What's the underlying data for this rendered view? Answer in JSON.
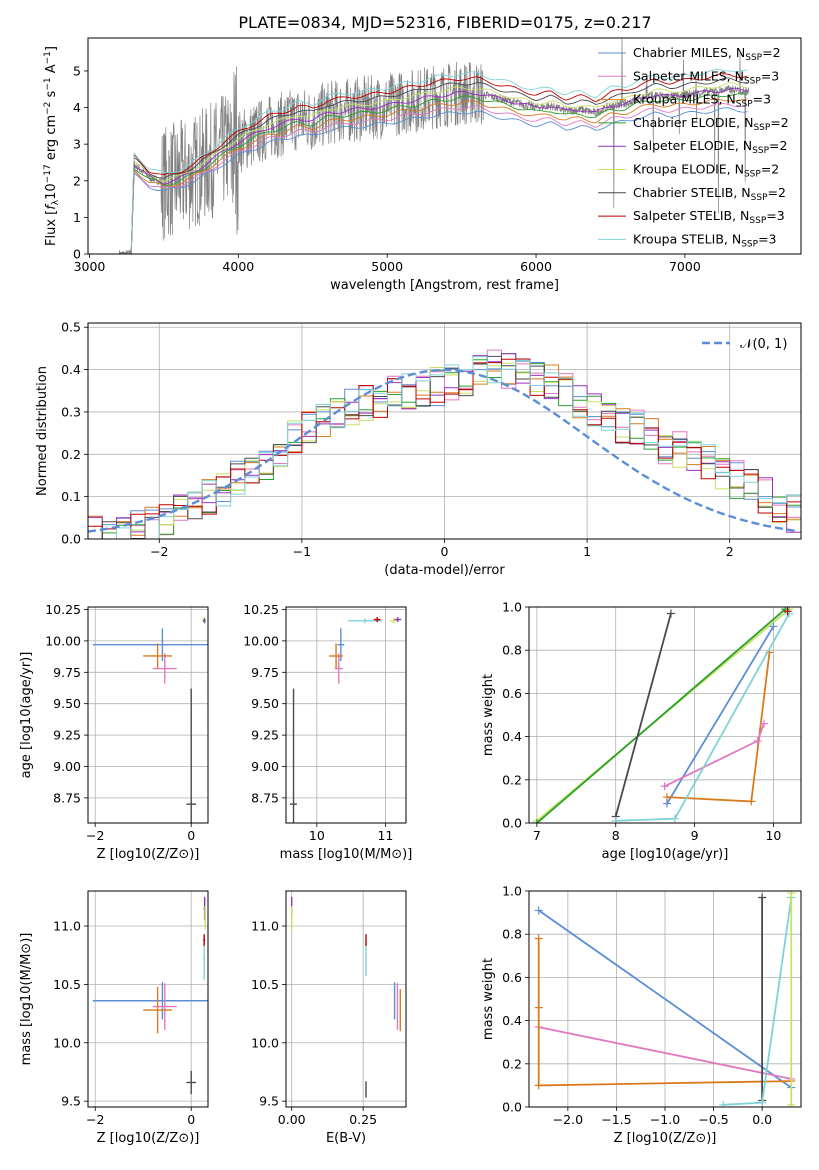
{
  "title": "PLATE=0834, MJD=52316, FIBERID=0175, z=0.217",
  "colors": {
    "chabrier_miles": "#5b8ed6",
    "salpeter_miles": "#e377c2",
    "kroupa_miles": "#d97a1f",
    "chabrier_elodie": "#2ca02c",
    "salpeter_elodie": "#9b30c0",
    "kroupa_elodie": "#c7e065",
    "chabrier_stelib": "#4a4a4a",
    "salpeter_stelib": "#c00000",
    "kroupa_stelib": "#7fd3d8",
    "spectrum": "#808080",
    "normal_curve": "#5b8ed6"
  },
  "chart_data": [
    {
      "id": "spectrum",
      "type": "line",
      "title": "PLATE=0834, MJD=52316, FIBERID=0175, z=0.217",
      "xlabel": "wavelength [Angstrom, rest frame]",
      "ylabel": "Flux [f_λ 10^-17 erg cm^-2 s^-1 A^-1]",
      "xlim": [
        2990,
        7780
      ],
      "ylim": [
        0,
        5.9
      ],
      "xticks": [
        3000,
        4000,
        5000,
        6000,
        7000
      ],
      "yticks": [
        0,
        1,
        2,
        3,
        4,
        5
      ],
      "legend": "top-right",
      "grid": false,
      "series": [
        {
          "key": "chabrier_miles",
          "label_main": "Chabrier MILES, N",
          "label_sub": "SSP",
          "label_end": "=2"
        },
        {
          "key": "salpeter_miles",
          "label_main": "Salpeter MILES, N",
          "label_sub": "SSP",
          "label_end": "=3"
        },
        {
          "key": "kroupa_miles",
          "label_main": "Kroupa MILES, N",
          "label_sub": "SSP",
          "label_end": "=3"
        },
        {
          "key": "chabrier_elodie",
          "label_main": "Chabrier ELODIE, N",
          "label_sub": "SSP",
          "label_end": "=2"
        },
        {
          "key": "salpeter_elodie",
          "label_main": "Salpeter ELODIE, N",
          "label_sub": "SSP",
          "label_end": "=2"
        },
        {
          "key": "kroupa_elodie",
          "label_main": "Kroupa ELODIE, N",
          "label_sub": "SSP",
          "label_end": "=2"
        },
        {
          "key": "chabrier_stelib",
          "label_main": "Chabrier STELIB, N",
          "label_sub": "SSP",
          "label_end": "=2"
        },
        {
          "key": "salpeter_stelib",
          "label_main": "Salpeter STELIB, N",
          "label_sub": "SSP",
          "label_end": "=3"
        },
        {
          "key": "kroupa_stelib",
          "label_main": "Kroupa STELIB, N",
          "label_sub": "SSP",
          "label_end": "=3"
        }
      ],
      "model_envelope": {
        "x": [
          3280,
          3300,
          3400,
          3500,
          3600,
          3700,
          3800,
          3900,
          4000,
          4100,
          4200,
          4300,
          4400,
          4500,
          4600,
          4700,
          4800,
          4900,
          5000,
          5100,
          5200,
          5300,
          5400,
          5500,
          5600,
          5700,
          5800,
          5900,
          6000,
          6100,
          6200,
          6300,
          6400,
          6500,
          6600,
          6700,
          6800,
          6900,
          7000,
          7100,
          7200,
          7300,
          7400
        ],
        "y": [
          0,
          2.45,
          2.1,
          1.95,
          2.05,
          2.25,
          2.5,
          2.8,
          3.05,
          3.25,
          3.45,
          3.55,
          3.7,
          3.65,
          3.85,
          3.9,
          3.95,
          4.0,
          4.05,
          4.15,
          4.2,
          4.3,
          4.35,
          4.4,
          4.4,
          4.3,
          4.2,
          4.1,
          4.0,
          4.05,
          3.9,
          3.95,
          3.85,
          4.05,
          4.1,
          4.25,
          4.35,
          4.3,
          4.35,
          4.4,
          4.45,
          4.5,
          4.45
        ]
      }
    },
    {
      "id": "residuals",
      "type": "line",
      "xlabel": "(data-model)/error",
      "ylabel": "Normed distribution",
      "xlim": [
        -2.5,
        2.5
      ],
      "ylim": [
        0,
        0.51
      ],
      "xticks": [
        -2,
        -1,
        0,
        1,
        2
      ],
      "yticks": [
        0.0,
        0.1,
        0.2,
        0.3,
        0.4,
        0.5
      ],
      "grid": true,
      "legend": "top-right",
      "normal_label": "𝒩(0, 1)",
      "hist_bin_width": 0.1,
      "hist_centers": [
        -2.45,
        -2.35,
        -2.25,
        -2.15,
        -2.05,
        -1.95,
        -1.85,
        -1.75,
        -1.65,
        -1.55,
        -1.45,
        -1.35,
        -1.25,
        -1.15,
        -1.05,
        -0.95,
        -0.85,
        -0.75,
        -0.65,
        -0.55,
        -0.45,
        -0.35,
        -0.25,
        -0.15,
        -0.05,
        0.05,
        0.15,
        0.25,
        0.35,
        0.45,
        0.55,
        0.65,
        0.75,
        0.85,
        0.95,
        1.05,
        1.15,
        1.25,
        1.35,
        1.45,
        1.55,
        1.65,
        1.75,
        1.85,
        1.95,
        2.05,
        2.15,
        2.25,
        2.35,
        2.45
      ],
      "hist_base": [
        0.01,
        0.015,
        0.02,
        0.025,
        0.03,
        0.04,
        0.06,
        0.08,
        0.1,
        0.12,
        0.14,
        0.16,
        0.18,
        0.21,
        0.24,
        0.26,
        0.28,
        0.3,
        0.31,
        0.32,
        0.33,
        0.34,
        0.35,
        0.35,
        0.36,
        0.37,
        0.38,
        0.4,
        0.41,
        0.4,
        0.39,
        0.38,
        0.37,
        0.35,
        0.33,
        0.31,
        0.29,
        0.27,
        0.26,
        0.24,
        0.22,
        0.21,
        0.2,
        0.18,
        0.16,
        0.14,
        0.12,
        0.1,
        0.08,
        0.06
      ]
    },
    {
      "id": "age-vs-z",
      "type": "scatter",
      "xlabel": "Z [log10(Z/Z⊙)]",
      "ylabel": "age  [log10(age/yr)]",
      "xlim": [
        -2.15,
        0.35
      ],
      "ylim": [
        8.55,
        10.27
      ],
      "xticks": [
        -2,
        0
      ],
      "yticks": [
        8.75,
        9.0,
        9.25,
        9.5,
        9.75,
        10.0,
        10.25
      ],
      "grid": true,
      "points": [
        {
          "key": "chabrier_miles",
          "x": -0.6,
          "xerr": 1.45,
          "y": 9.97,
          "yerr": 0.13
        },
        {
          "key": "salpeter_miles",
          "x": -0.55,
          "xerr": 0.25,
          "y": 9.78,
          "yerr": 0.12
        },
        {
          "key": "kroupa_miles",
          "x": -0.7,
          "xerr": 0.3,
          "y": 9.88,
          "yerr": 0.1
        },
        {
          "key": "chabrier_stelib",
          "x": 0.0,
          "xerr": 0.1,
          "y": 8.7,
          "yerr": 0.92
        },
        {
          "key": "kroupa_elodie",
          "x": 0.27,
          "xerr": 0.03,
          "y": 10.17,
          "yerr": 0.02
        },
        {
          "key": "salpeter_elodie",
          "x": 0.28,
          "xerr": 0.02,
          "y": 10.16,
          "yerr": 0.02
        },
        {
          "key": "chabrier_elodie",
          "x": 0.26,
          "xerr": 0.02,
          "y": 10.16,
          "yerr": 0.01
        }
      ]
    },
    {
      "id": "age-vs-mass",
      "type": "scatter",
      "xlabel": "mass [log10(M/M⊙)]",
      "ylabel": "",
      "xlim": [
        9.55,
        11.3
      ],
      "ylim": [
        8.55,
        10.27
      ],
      "xticks": [
        10,
        11
      ],
      "yticks": [
        8.75,
        9.0,
        9.25,
        9.5,
        9.75,
        10.0,
        10.25
      ],
      "grid": true,
      "points": [
        {
          "key": "chabrier_miles",
          "x": 10.35,
          "xerr": 0.05,
          "y": 9.97,
          "yerr": 0.13
        },
        {
          "key": "salpeter_miles",
          "x": 10.32,
          "xerr": 0.06,
          "y": 9.78,
          "yerr": 0.12
        },
        {
          "key": "kroupa_miles",
          "x": 10.28,
          "xerr": 0.1,
          "y": 9.88,
          "yerr": 0.1
        },
        {
          "key": "chabrier_stelib",
          "x": 9.66,
          "xerr": 0.05,
          "y": 8.7,
          "yerr": 0.92
        },
        {
          "key": "kroupa_stelib",
          "x": 10.7,
          "xerr": 0.25,
          "y": 10.16,
          "yerr": 0.02
        },
        {
          "key": "salpeter_stelib",
          "x": 10.88,
          "xerr": 0.05,
          "y": 10.17,
          "yerr": 0.02
        },
        {
          "key": "salpeter_elodie",
          "x": 11.18,
          "xerr": 0.05,
          "y": 10.17,
          "yerr": 0.02
        },
        {
          "key": "kroupa_elodie",
          "x": 11.12,
          "xerr": 0.05,
          "y": 10.16,
          "yerr": 0.02
        }
      ]
    },
    {
      "id": "weight-vs-age",
      "type": "line",
      "xlabel": "age  [log10(age/yr)]",
      "ylabel": "mass weight",
      "xlim": [
        6.9,
        10.35
      ],
      "ylim": [
        0,
        1.0
      ],
      "xticks": [
        7,
        8,
        9,
        10
      ],
      "yticks": [
        0.0,
        0.2,
        0.4,
        0.6,
        0.8,
        1.0
      ],
      "grid": true,
      "series": [
        {
          "key": "kroupa_elodie",
          "x": [
            7.0,
            10.2
          ],
          "y": [
            0.01,
            0.99
          ]
        },
        {
          "key": "chabrier_elodie",
          "x": [
            7.0,
            10.15
          ],
          "y": [
            0.0,
            0.99
          ]
        },
        {
          "key": "chabrier_stelib",
          "x": [
            8.0,
            8.7
          ],
          "y": [
            0.03,
            0.97
          ]
        },
        {
          "key": "chabrier_miles",
          "x": [
            8.65,
            10.0
          ],
          "y": [
            0.09,
            0.91
          ]
        },
        {
          "key": "kroupa_miles",
          "x": [
            8.65,
            9.72,
            9.95
          ],
          "y": [
            0.12,
            0.1,
            0.79
          ]
        },
        {
          "key": "salpeter_miles",
          "x": [
            8.62,
            9.8,
            9.88
          ],
          "y": [
            0.17,
            0.38,
            0.46
          ]
        },
        {
          "key": "kroupa_stelib",
          "x": [
            8.0,
            8.75,
            10.2
          ],
          "y": [
            0.01,
            0.02,
            0.97
          ]
        },
        {
          "key": "salpeter_stelib",
          "x": [
            10.18
          ],
          "y": [
            0.98
          ]
        }
      ]
    },
    {
      "id": "mass-vs-z",
      "type": "scatter",
      "xlabel": "Z [log10(Z/Z⊙)]",
      "ylabel": "mass [log10(M/M⊙)]",
      "xlim": [
        -2.15,
        0.35
      ],
      "ylim": [
        9.45,
        11.3
      ],
      "xticks": [
        -2,
        0
      ],
      "yticks": [
        9.5,
        10.0,
        10.5,
        11.0
      ],
      "grid": true,
      "points": [
        {
          "key": "chabrier_miles",
          "x": -0.6,
          "xerr": 1.45,
          "y": 10.36,
          "yerr": 0.16
        },
        {
          "key": "salpeter_miles",
          "x": -0.55,
          "xerr": 0.25,
          "y": 10.31,
          "yerr": 0.2
        },
        {
          "key": "kroupa_miles",
          "x": -0.7,
          "xerr": 0.3,
          "y": 10.28,
          "yerr": 0.2
        },
        {
          "key": "chabrier_stelib",
          "x": 0.0,
          "xerr": 0.1,
          "y": 9.66,
          "yerr": 0.1
        },
        {
          "key": "kroupa_stelib",
          "x": 0.27,
          "xerr": 0.02,
          "y": 10.72,
          "yerr": 0.18
        },
        {
          "key": "salpeter_stelib",
          "x": 0.27,
          "xerr": 0.02,
          "y": 10.88,
          "yerr": 0.05
        },
        {
          "key": "salpeter_elodie",
          "x": 0.28,
          "xerr": 0.02,
          "y": 11.15,
          "yerr": 0.1
        },
        {
          "key": "kroupa_elodie",
          "x": 0.29,
          "xerr": 0.02,
          "y": 11.07,
          "yerr": 0.1
        }
      ]
    },
    {
      "id": "mass-vs-ebv",
      "type": "scatter",
      "xlabel": "E(B-V)",
      "ylabel": "",
      "xlim": [
        -0.02,
        0.4
      ],
      "ylim": [
        9.45,
        11.3
      ],
      "xticks": [
        0.0,
        0.25
      ],
      "yticks": [
        9.5,
        10.0,
        10.5,
        11.0
      ],
      "grid": true,
      "points": [
        {
          "key": "chabrier_miles",
          "x": 0.36,
          "xerr": 0,
          "y": 10.36,
          "yerr": 0.16
        },
        {
          "key": "salpeter_miles",
          "x": 0.37,
          "xerr": 0,
          "y": 10.31,
          "yerr": 0.2
        },
        {
          "key": "kroupa_miles",
          "x": 0.38,
          "xerr": 0,
          "y": 10.28,
          "yerr": 0.18
        },
        {
          "key": "chabrier_stelib",
          "x": 0.26,
          "xerr": 0,
          "y": 9.6,
          "yerr": 0.07
        },
        {
          "key": "kroupa_stelib",
          "x": 0.26,
          "xerr": 0,
          "y": 10.72,
          "yerr": 0.15
        },
        {
          "key": "salpeter_stelib",
          "x": 0.26,
          "xerr": 0,
          "y": 10.88,
          "yerr": 0.05
        },
        {
          "key": "salpeter_elodie",
          "x": 0.0,
          "xerr": 0,
          "y": 11.17,
          "yerr": 0.08
        },
        {
          "key": "kroupa_elodie",
          "x": 0.0,
          "xerr": 0,
          "y": 11.07,
          "yerr": 0.1
        }
      ]
    },
    {
      "id": "weight-vs-z",
      "type": "line",
      "xlabel": "Z [log10(Z/Z⊙)]",
      "ylabel": "mass weight",
      "xlim": [
        -2.4,
        0.4
      ],
      "ylim": [
        0,
        1.0
      ],
      "xticks": [
        -2.0,
        -1.5,
        -1.0,
        -0.5,
        0.0
      ],
      "yticks": [
        0.0,
        0.2,
        0.4,
        0.6,
        0.8,
        1.0
      ],
      "grid": true,
      "series": [
        {
          "key": "chabrier_miles",
          "x": [
            -2.3,
            0.3
          ],
          "y": [
            0.91,
            0.09
          ]
        },
        {
          "key": "salpeter_miles",
          "x": [
            -2.3,
            0.3
          ],
          "y": [
            0.37,
            0.13
          ]
        },
        {
          "key": "kroupa_miles",
          "x": [
            -2.3,
            -2.3,
            -2.3,
            0.3
          ],
          "y": [
            0.78,
            0.46,
            0.1,
            0.12
          ]
        },
        {
          "key": "chabrier_stelib",
          "x": [
            0.0,
            0.0
          ],
          "y": [
            0.03,
            0.97
          ]
        },
        {
          "key": "kroupa_stelib",
          "x": [
            -0.4,
            0.0,
            0.3
          ],
          "y": [
            0.01,
            0.02,
            0.97
          ]
        },
        {
          "key": "kroupa_elodie",
          "x": [
            0.3,
            0.3
          ],
          "y": [
            0.01,
            0.99
          ]
        }
      ]
    }
  ]
}
